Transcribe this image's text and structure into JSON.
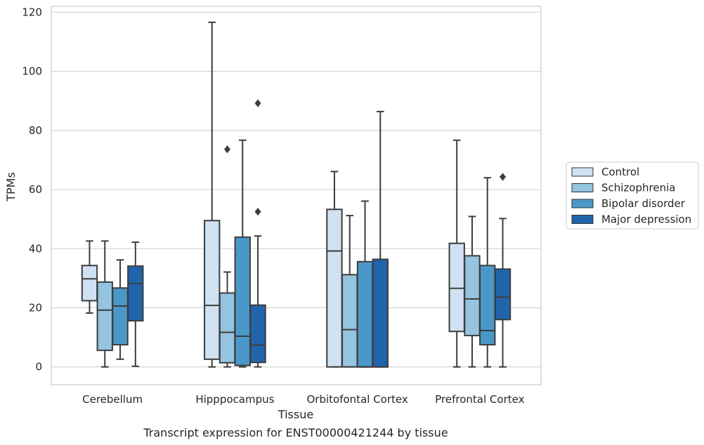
{
  "chart_data": {
    "type": "boxplot",
    "title": "Transcript expression for ENST00000421244 by tissue",
    "xlabel": "Tissue",
    "ylabel": "TPMs",
    "ylim": [
      -6,
      122
    ],
    "yticks": [
      0,
      20,
      40,
      60,
      80,
      100,
      120
    ],
    "grid": true,
    "legend_position": "right",
    "categories": [
      "Cerebellum",
      "Hipppocampus",
      "Orbitofontal Cortex",
      "Prefrontal Cortex"
    ],
    "series": [
      {
        "name": "Control",
        "color": "#d0e1f2",
        "boxes": [
          {
            "whislo": 18.2,
            "q1": 22.4,
            "med": 29.8,
            "q3": 34.3,
            "whishi": 42.6,
            "fliers": []
          },
          {
            "whislo": 0,
            "q1": 2.6,
            "med": 20.8,
            "q3": 49.5,
            "whishi": 116.6,
            "fliers": []
          },
          {
            "whislo": 0,
            "q1": 0,
            "med": 39.2,
            "q3": 53.3,
            "whishi": 66.1,
            "fliers": []
          },
          {
            "whislo": 0,
            "q1": 12.0,
            "med": 26.6,
            "q3": 41.8,
            "whishi": 76.7,
            "fliers": []
          }
        ]
      },
      {
        "name": "Schizophrenia",
        "color": "#94c4df",
        "boxes": [
          {
            "whislo": 0,
            "q1": 5.6,
            "med": 19.2,
            "q3": 28.7,
            "whishi": 42.6,
            "fliers": []
          },
          {
            "whislo": 0,
            "q1": 1.4,
            "med": 11.7,
            "q3": 25.0,
            "whishi": 32.1,
            "fliers": [
              73.6
            ]
          },
          {
            "whislo": 0,
            "q1": 0,
            "med": 12.6,
            "q3": 31.2,
            "whishi": 51.2,
            "fliers": []
          },
          {
            "whislo": 0,
            "q1": 10.6,
            "med": 23.0,
            "q3": 37.6,
            "whishi": 50.9,
            "fliers": []
          }
        ]
      },
      {
        "name": "Bipolar disorder",
        "color": "#4a98c9",
        "boxes": [
          {
            "whislo": 2.6,
            "q1": 7.5,
            "med": 20.6,
            "q3": 26.7,
            "whishi": 36.2,
            "fliers": []
          },
          {
            "whislo": 0,
            "q1": 0.5,
            "med": 10.4,
            "q3": 43.9,
            "whishi": 76.7,
            "fliers": []
          },
          {
            "whislo": 0,
            "q1": 0,
            "med": 0,
            "q3": 35.6,
            "whishi": 56.1,
            "fliers": []
          },
          {
            "whislo": 0,
            "q1": 7.5,
            "med": 12.3,
            "q3": 34.3,
            "whishi": 64.0,
            "fliers": []
          }
        ]
      },
      {
        "name": "Major depression",
        "color": "#2164ab",
        "boxes": [
          {
            "whislo": 0.2,
            "q1": 15.6,
            "med": 28.2,
            "q3": 34.1,
            "whishi": 42.2,
            "fliers": []
          },
          {
            "whislo": 0,
            "q1": 1.5,
            "med": 7.4,
            "q3": 20.9,
            "whishi": 44.3,
            "fliers": [
              52.5,
              89.2
            ]
          },
          {
            "whislo": 0,
            "q1": 0,
            "med": 0,
            "q3": 36.4,
            "whishi": 86.4,
            "fliers": []
          },
          {
            "whislo": 0,
            "q1": 16.0,
            "med": 23.6,
            "q3": 33.1,
            "whishi": 50.2,
            "fliers": [
              64.3
            ]
          }
        ]
      }
    ]
  }
}
